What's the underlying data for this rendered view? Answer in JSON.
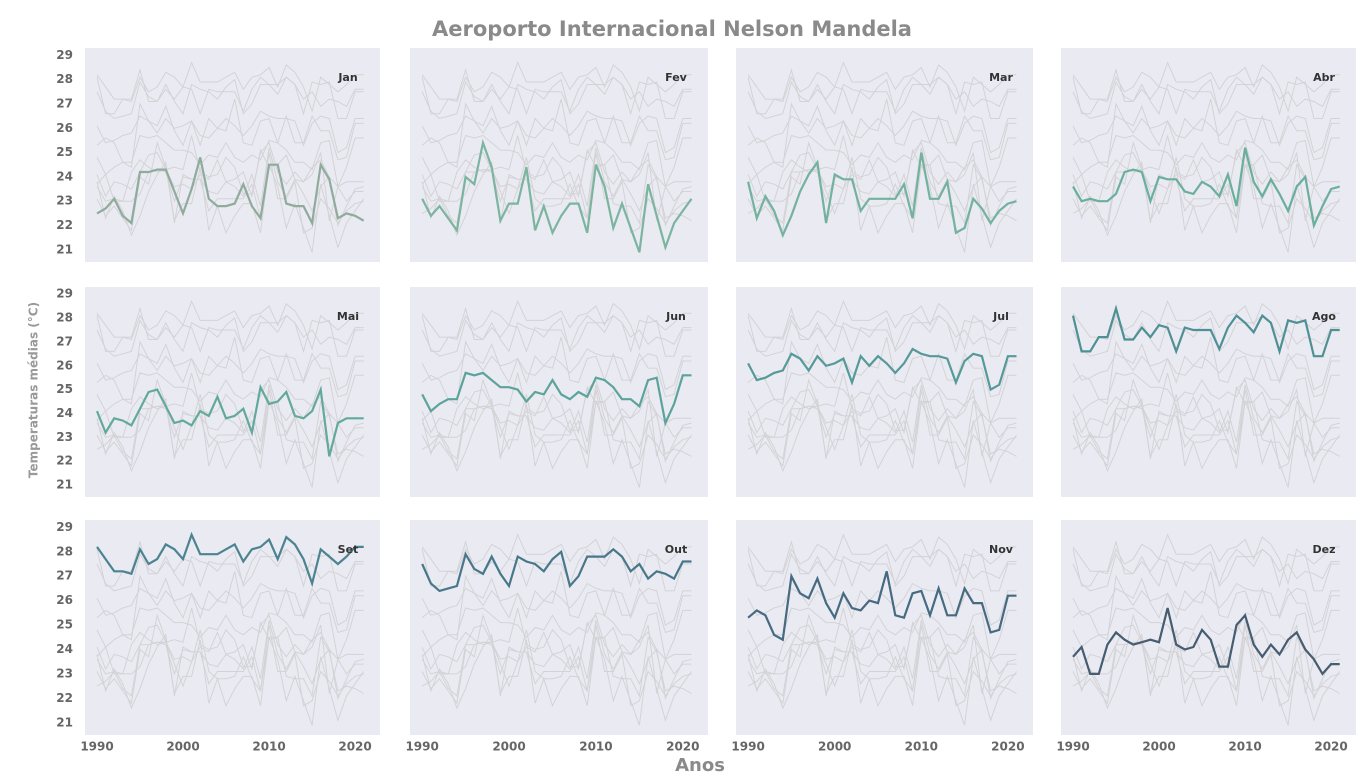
{
  "chart_data": {
    "type": "line",
    "title": "Aeroporto Internacional Nelson Mandela",
    "xlabel": "Anos",
    "ylabel": "Temperaturas médias (°C)",
    "x": [
      1990,
      1991,
      1992,
      1993,
      1994,
      1995,
      1996,
      1997,
      1998,
      1999,
      2000,
      2001,
      2002,
      2003,
      2004,
      2005,
      2006,
      2007,
      2008,
      2009,
      2010,
      2011,
      2012,
      2013,
      2014,
      2015,
      2016,
      2017,
      2018,
      2019,
      2020,
      2021
    ],
    "xlim": [
      1988.6,
      2022.9
    ],
    "xticks": [
      1990,
      2000,
      2010,
      2020
    ],
    "ylim": [
      20.5,
      29.3
    ],
    "yticks": [
      21,
      22,
      23,
      24,
      25,
      26,
      27,
      28,
      29
    ],
    "background_color": "#d3d3d6",
    "series": [
      {
        "name": "Jan",
        "color": "#8fab9c",
        "values": [
          22.5,
          22.7,
          23.1,
          22.4,
          22.1,
          24.2,
          24.2,
          24.3,
          24.3,
          23.4,
          22.5,
          23.5,
          24.8,
          23.1,
          22.8,
          22.8,
          22.9,
          23.7,
          22.8,
          22.3,
          24.5,
          24.5,
          22.9,
          22.8,
          22.8,
          22.1,
          24.5,
          23.9,
          22.3,
          22.5,
          22.4,
          22.2
        ]
      },
      {
        "name": "Fev",
        "color": "#7bb5a0",
        "values": [
          23.1,
          22.4,
          22.8,
          22.3,
          21.8,
          24.0,
          23.7,
          25.4,
          24.4,
          22.2,
          22.9,
          22.9,
          24.4,
          21.8,
          22.8,
          21.7,
          22.4,
          22.9,
          22.9,
          21.7,
          24.5,
          23.6,
          21.9,
          22.9,
          21.9,
          20.9,
          23.7,
          22.4,
          21.1,
          22.1,
          22.6,
          23.1
        ]
      },
      {
        "name": "Mar",
        "color": "#72b29f",
        "values": [
          23.8,
          22.3,
          23.2,
          22.6,
          21.6,
          22.4,
          23.4,
          24.1,
          24.6,
          22.1,
          24.1,
          23.9,
          23.9,
          22.6,
          23.1,
          23.1,
          23.1,
          23.1,
          23.7,
          22.3,
          25.0,
          23.1,
          23.1,
          23.8,
          21.7,
          21.9,
          23.1,
          22.7,
          22.1,
          22.6,
          22.9,
          23.0
        ]
      },
      {
        "name": "Abr",
        "color": "#6aaf9e",
        "values": [
          23.6,
          23.0,
          23.1,
          23.0,
          23.0,
          23.3,
          24.2,
          24.3,
          24.2,
          23.0,
          24.0,
          23.9,
          23.9,
          23.4,
          23.3,
          23.8,
          23.6,
          23.2,
          24.1,
          22.8,
          25.2,
          23.8,
          23.2,
          23.9,
          23.3,
          22.6,
          23.6,
          24.0,
          22.0,
          22.8,
          23.5,
          23.6
        ]
      },
      {
        "name": "Mai",
        "color": "#62a99c",
        "values": [
          24.1,
          23.2,
          23.8,
          23.7,
          23.5,
          24.2,
          24.9,
          25.0,
          24.3,
          23.6,
          23.7,
          23.5,
          24.1,
          23.9,
          24.7,
          23.8,
          23.9,
          24.2,
          23.2,
          25.1,
          24.4,
          24.5,
          24.9,
          23.9,
          23.8,
          24.1,
          25.0,
          22.2,
          23.6,
          23.8,
          23.8,
          23.8
        ]
      },
      {
        "name": "Jun",
        "color": "#5ba39b",
        "values": [
          24.8,
          24.1,
          24.4,
          24.6,
          24.6,
          25.7,
          25.6,
          25.7,
          25.4,
          25.1,
          25.1,
          25.0,
          24.5,
          24.9,
          24.8,
          25.4,
          24.8,
          24.6,
          24.9,
          24.7,
          25.5,
          25.4,
          25.1,
          24.6,
          24.6,
          24.3,
          25.4,
          25.5,
          23.6,
          24.4,
          25.6,
          25.6
        ]
      },
      {
        "name": "Jul",
        "color": "#559a98",
        "values": [
          26.1,
          25.4,
          25.5,
          25.7,
          25.8,
          26.5,
          26.3,
          25.8,
          26.4,
          26.0,
          26.1,
          26.3,
          25.3,
          26.4,
          26.0,
          26.4,
          26.1,
          25.7,
          26.1,
          26.7,
          26.5,
          26.4,
          26.4,
          26.3,
          25.3,
          26.2,
          26.5,
          26.4,
          25.0,
          25.2,
          26.4,
          26.4
        ]
      },
      {
        "name": "Ago",
        "color": "#4f9095",
        "values": [
          28.1,
          26.6,
          26.6,
          27.2,
          27.2,
          28.4,
          27.1,
          27.1,
          27.6,
          27.2,
          27.7,
          27.6,
          26.6,
          27.6,
          27.5,
          27.5,
          27.5,
          26.7,
          27.6,
          28.1,
          27.8,
          27.4,
          28.1,
          27.8,
          26.6,
          27.9,
          27.8,
          27.9,
          26.4,
          26.4,
          27.5,
          27.5
        ]
      },
      {
        "name": "Set",
        "color": "#4b8490",
        "values": [
          28.2,
          27.7,
          27.2,
          27.2,
          27.1,
          28.1,
          27.5,
          27.7,
          28.3,
          28.1,
          27.7,
          28.7,
          27.9,
          27.9,
          27.9,
          28.1,
          28.3,
          27.6,
          28.1,
          28.2,
          28.5,
          27.7,
          28.6,
          28.3,
          27.7,
          26.7,
          28.1,
          27.8,
          27.5,
          27.8,
          28.2,
          28.2
        ]
      },
      {
        "name": "Out",
        "color": "#48778a",
        "values": [
          27.5,
          26.7,
          26.4,
          26.5,
          26.6,
          27.9,
          27.3,
          27.1,
          27.8,
          27.1,
          26.6,
          27.8,
          27.6,
          27.5,
          27.2,
          27.7,
          28.0,
          26.6,
          27.0,
          27.8,
          27.8,
          27.8,
          28.1,
          27.8,
          27.2,
          27.5,
          26.9,
          27.2,
          27.1,
          26.9,
          27.6,
          27.6
        ]
      },
      {
        "name": "Nov",
        "color": "#466a80",
        "values": [
          25.3,
          25.6,
          25.4,
          24.6,
          24.4,
          27.0,
          26.3,
          26.1,
          26.9,
          25.9,
          25.3,
          26.3,
          25.7,
          25.6,
          26.0,
          25.9,
          27.2,
          25.4,
          25.3,
          26.3,
          26.4,
          25.4,
          26.5,
          25.4,
          25.4,
          26.5,
          25.9,
          25.9,
          24.7,
          24.8,
          26.2,
          26.2
        ]
      },
      {
        "name": "Dez",
        "color": "#465c70",
        "values": [
          23.7,
          24.1,
          23.0,
          23.0,
          24.2,
          24.7,
          24.4,
          24.2,
          24.3,
          24.4,
          24.3,
          25.7,
          24.2,
          24.0,
          24.1,
          24.8,
          24.4,
          23.3,
          23.3,
          25.0,
          25.4,
          24.2,
          23.7,
          24.2,
          23.8,
          24.4,
          24.7,
          24.0,
          23.6,
          23.0,
          23.4,
          23.4
        ]
      }
    ]
  }
}
